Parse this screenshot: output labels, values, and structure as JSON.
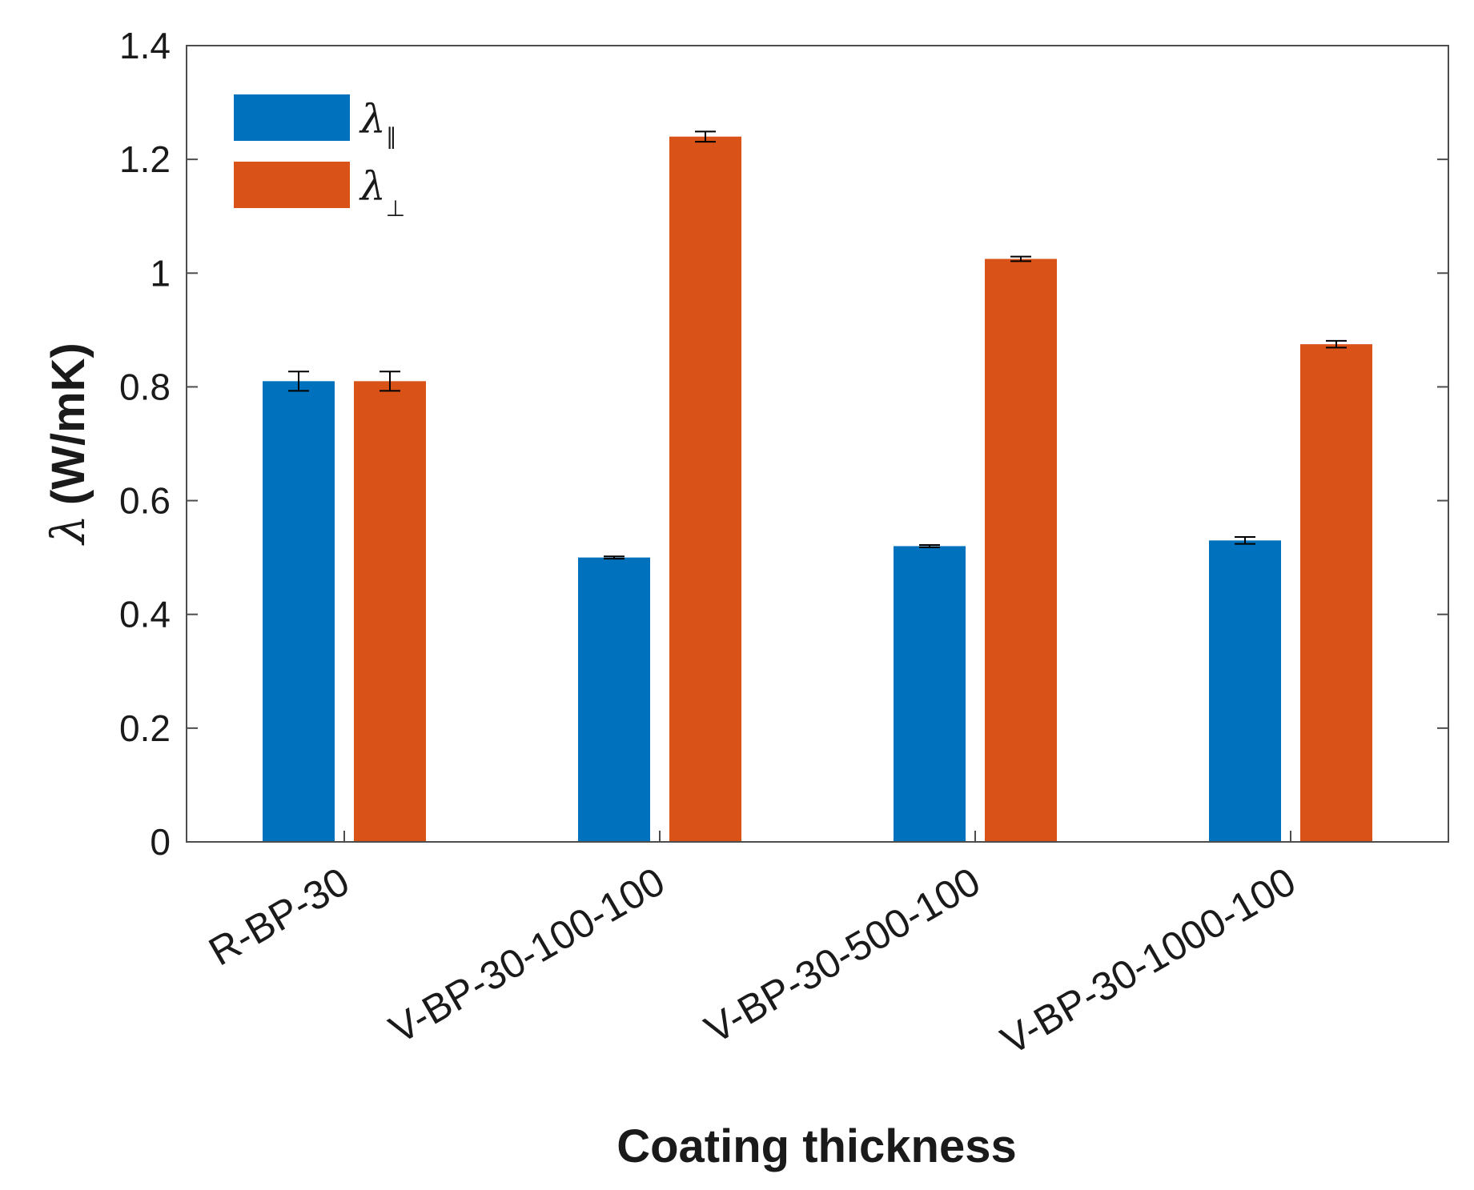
{
  "chart_data": {
    "type": "bar",
    "categories": [
      "R-BP-30",
      "V-BP-30-100-100",
      "V-BP-30-500-100",
      "V-BP-30-1000-100"
    ],
    "series": [
      {
        "name": "λ",
        "name_sub": "∥",
        "color": "#0072BD",
        "values": [
          0.81,
          0.5,
          0.52,
          0.53
        ],
        "errors": [
          0.017,
          0.002,
          0.002,
          0.006
        ]
      },
      {
        "name": "λ",
        "name_sub": "⊥",
        "color": "#D95319",
        "values": [
          0.81,
          1.24,
          1.025,
          0.875
        ],
        "errors": [
          0.017,
          0.009,
          0.004,
          0.006
        ]
      }
    ],
    "xlabel": "Coating thickness",
    "ylabel_symbol": "λ",
    "ylabel_unit": "(W/mK)",
    "ylim": [
      0,
      1.4
    ],
    "yticks": [
      0,
      0.2,
      0.4,
      0.6,
      0.8,
      1,
      1.2,
      1.4
    ],
    "ytick_labels": [
      "0",
      "0.2",
      "0.4",
      "0.6",
      "0.8",
      "1",
      "1.2",
      "1.4"
    ],
    "grid": false,
    "legend_position": "top-left"
  }
}
